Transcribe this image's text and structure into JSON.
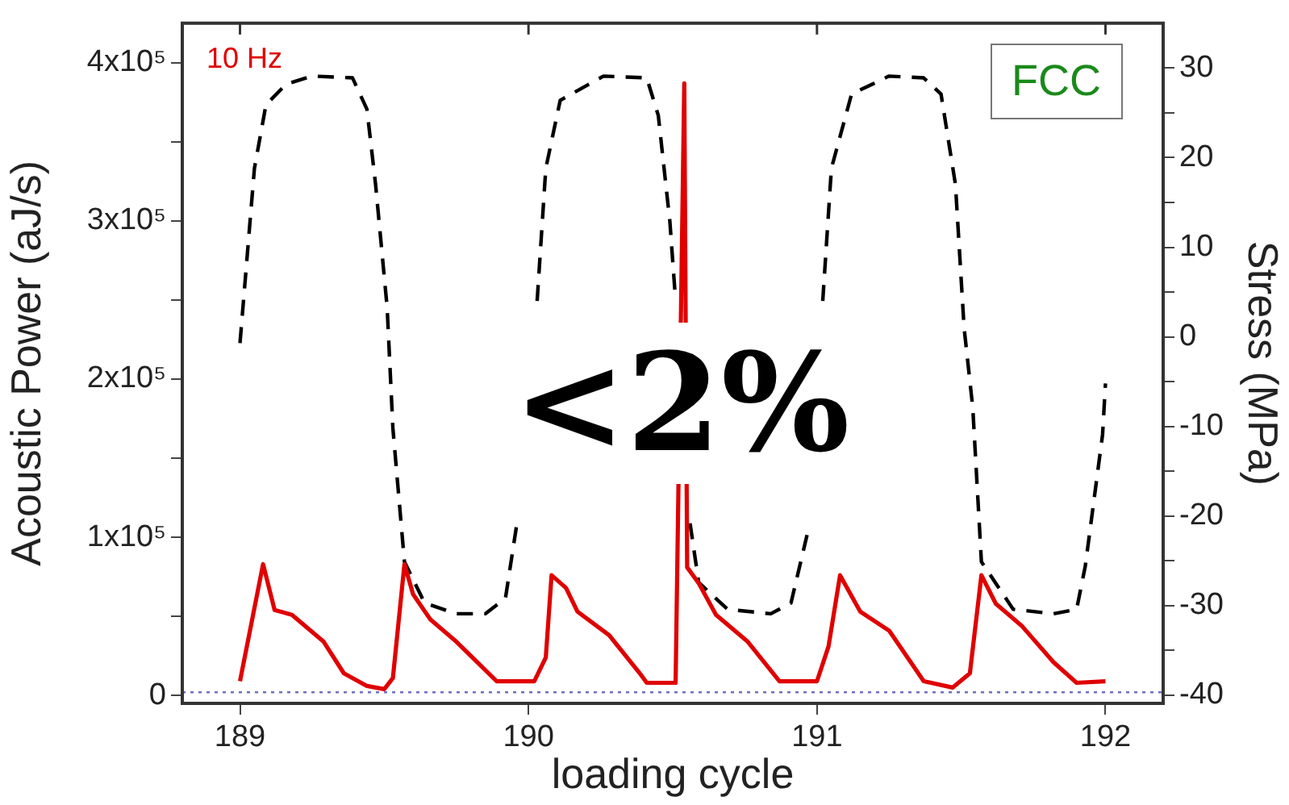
{
  "chart_data": {
    "type": "line",
    "xlabel": "loading cycle",
    "ylabel": "Acoustic Power (aJ/s)",
    "y2label": "Stress (MPa)",
    "annotations": [
      "10 Hz",
      "FCC",
      "<2%"
    ],
    "xlim": [
      188.8,
      192.2
    ],
    "xticks": [
      189,
      190,
      191,
      192
    ],
    "ylim": [
      -5000,
      425000
    ],
    "yticks": [
      {
        "value": 0,
        "label": "0"
      },
      {
        "value": 50000,
        "label": null
      },
      {
        "value": 100000,
        "label": "1x10⁵"
      },
      {
        "value": 150000,
        "label": null
      },
      {
        "value": 200000,
        "label": "2x10⁵"
      },
      {
        "value": 250000,
        "label": null
      },
      {
        "value": 300000,
        "label": "3x10⁵"
      },
      {
        "value": 350000,
        "label": null
      },
      {
        "value": 400000,
        "label": "4x10⁵"
      }
    ],
    "y2lim": [
      -40.9,
      35
    ],
    "y2ticks": [
      -40,
      {
        "value": -35,
        "label": null
      },
      -30,
      {
        "value": -25,
        "label": null
      },
      -20,
      {
        "value": -15,
        "label": null
      },
      -10,
      {
        "value": -5,
        "label": null
      },
      0,
      {
        "value": 5,
        "label": null
      },
      10,
      {
        "value": 15,
        "label": null
      },
      20,
      {
        "value": 25,
        "label": null
      },
      30
    ],
    "grid": false,
    "legend": false,
    "marker": "none",
    "ref_lines": [
      {
        "axis": "y",
        "value": 2000,
        "color": "#7070c0",
        "line_style": "dotted"
      }
    ],
    "series": [
      {
        "color": "#e00000",
        "line_style": "solid",
        "x": [
          189.0,
          189.08,
          189.12,
          189.18,
          189.29,
          189.36,
          189.44,
          189.5,
          189.53,
          189.57,
          189.6,
          189.66,
          189.75,
          189.89,
          190.02,
          190.06,
          190.08,
          190.13,
          190.17,
          190.28,
          190.39,
          190.41,
          190.51,
          190.54,
          190.55,
          190.59,
          190.65,
          190.76,
          190.87,
          191.0,
          191.04,
          191.08,
          191.15,
          191.25,
          191.37,
          191.47,
          191.53,
          191.57,
          191.62,
          191.71,
          191.82,
          191.9,
          192.0
        ],
        "values": [
          9000,
          83000,
          54000,
          51000,
          34000,
          14000,
          6000,
          4000,
          11000,
          83000,
          64000,
          48000,
          34000,
          9000,
          9000,
          24000,
          76000,
          68000,
          53000,
          38000,
          13000,
          8000,
          8000,
          387000,
          81000,
          71000,
          51000,
          34000,
          9000,
          9000,
          31000,
          76000,
          53000,
          41000,
          9000,
          5000,
          14000,
          76000,
          58000,
          44000,
          21000,
          8000,
          9000
        ]
      },
      {
        "color": "#000000",
        "line_style": "dashed",
        "axis": "y2",
        "x": [
          189.0,
          189.05,
          189.09,
          189.16,
          189.25,
          189.39,
          189.44,
          189.47,
          189.51,
          189.53,
          189.57,
          189.64,
          189.75,
          189.85,
          189.92,
          189.96,
          190.0,
          190.03,
          190.06,
          190.11,
          190.26,
          190.41,
          190.45,
          190.49,
          190.51,
          190.53,
          190.56,
          190.59,
          190.69,
          190.84,
          190.91,
          190.97,
          191.0,
          191.02,
          191.05,
          191.12,
          191.25,
          191.37,
          191.43,
          191.48,
          191.51,
          191.54,
          191.57,
          191.68,
          191.82,
          191.9,
          191.93,
          191.99,
          192.0
        ],
        "values": [
          -0.7,
          18.8,
          25.9,
          28.2,
          29.1,
          28.9,
          25.4,
          17.0,
          3.3,
          -10.2,
          -25.1,
          -29.7,
          -30.9,
          -30.9,
          -29.2,
          -20.8,
          null,
          4.0,
          18.8,
          26.4,
          29.1,
          28.9,
          24.7,
          12.9,
          4.0,
          null,
          -20.8,
          -27.4,
          -30.4,
          -30.9,
          -29.7,
          -21.5,
          null,
          4.0,
          18.8,
          27.1,
          29.1,
          28.9,
          27.1,
          17.0,
          1.0,
          -7.9,
          -25.1,
          -30.4,
          -30.9,
          -30.4,
          -25.6,
          -10.9,
          -5.2
        ]
      }
    ]
  }
}
